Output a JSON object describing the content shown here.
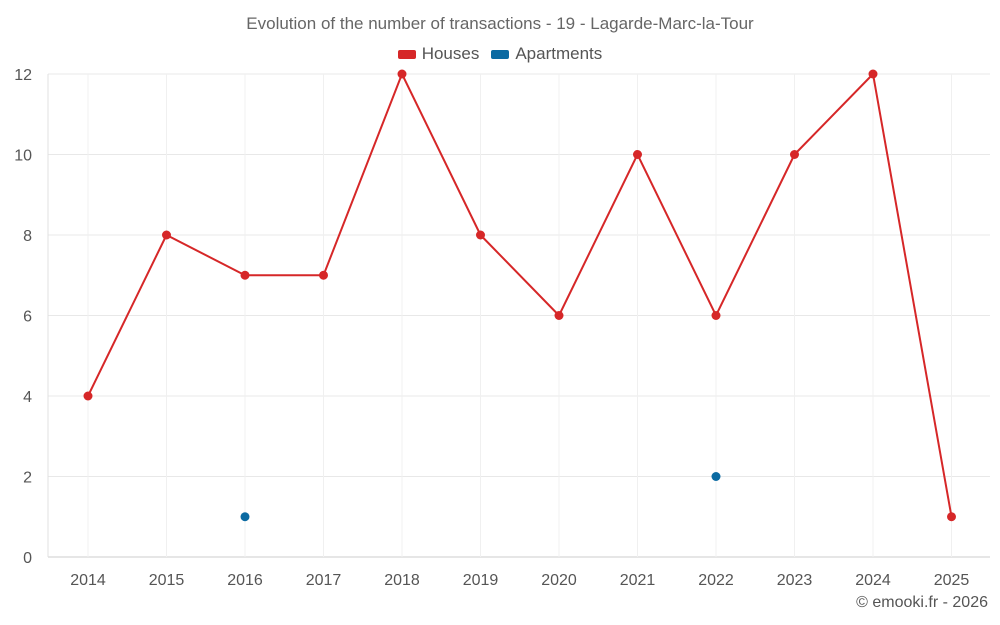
{
  "chart_data": {
    "type": "line",
    "title": "Evolution of the number of transactions - 19 - Lagarde-Marc-la-Tour",
    "categories": [
      "2014",
      "2015",
      "2016",
      "2017",
      "2018",
      "2019",
      "2020",
      "2021",
      "2022",
      "2023",
      "2024",
      "2025"
    ],
    "series": [
      {
        "name": "Houses",
        "color": "#d62728",
        "values": [
          4,
          8,
          7,
          7,
          12,
          8,
          6,
          10,
          6,
          10,
          12,
          1
        ]
      },
      {
        "name": "Apartments",
        "color": "#0b6aa2",
        "values": [
          null,
          null,
          1,
          null,
          null,
          null,
          null,
          null,
          2,
          null,
          null,
          null
        ]
      }
    ],
    "ylim": [
      0,
      12
    ],
    "yticks": [
      0,
      2,
      4,
      6,
      8,
      10,
      12
    ],
    "legend_position": "top-center",
    "grid": true
  },
  "footer": {
    "credit": "© emooki.fr - 2026"
  }
}
